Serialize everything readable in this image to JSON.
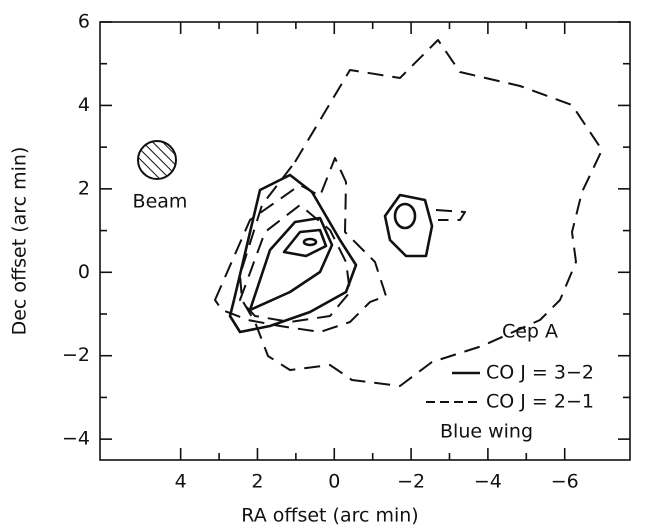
{
  "chart_data": {
    "type": "contour",
    "xlabel": "RA  offset  (arc min)",
    "ylabel": "Dec  offset  (arc min)",
    "xlim": [
      6.1,
      -7.7
    ],
    "ylim": [
      -4.5,
      6
    ],
    "xticks": [
      4,
      2,
      0,
      {
        "value": -2,
        "label": "−2"
      },
      {
        "value": -4,
        "label": "−4"
      },
      {
        "value": -6,
        "label": "−6"
      }
    ],
    "yticks": [
      6,
      4,
      2,
      0,
      {
        "value": -2,
        "label": "−2"
      },
      {
        "value": -4,
        "label": "−4"
      }
    ],
    "beam_label": "Beam",
    "source": "Cep A",
    "legend": [
      "CO J = 3−2",
      "CO J = 2−1"
    ],
    "note": "Blue wing"
  }
}
